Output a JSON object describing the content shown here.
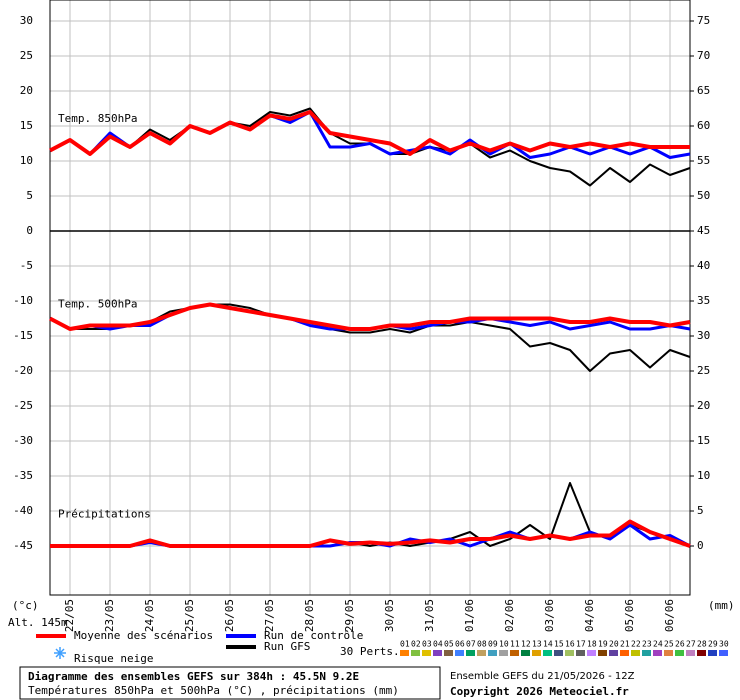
{
  "chart_data": {
    "type": "line",
    "categories": [
      null,
      "22/05",
      null,
      "23/05",
      null,
      "24/05",
      null,
      "25/05",
      null,
      "26/05",
      null,
      "27/05",
      null,
      "28/05",
      null,
      "29/05",
      null,
      "30/05",
      null,
      "31/05",
      null,
      "01/06",
      null,
      "02/06",
      null,
      "03/06",
      null,
      "04/06",
      null,
      "05/06",
      null,
      "06/06",
      null
    ],
    "ylim": [
      -52,
      33
    ],
    "yticks": [
      30,
      25,
      20,
      15,
      10,
      5,
      0,
      -5,
      -10,
      -15,
      -20,
      -25,
      -30,
      -35,
      -40,
      -45
    ],
    "y2lim": [
      -7,
      78
    ],
    "y2ticks": [
      75,
      70,
      65,
      60,
      55,
      50,
      45,
      40,
      35,
      30,
      25,
      20,
      15,
      10,
      5,
      0
    ],
    "grid": true,
    "y_unit": "(°c)",
    "y2_unit": "(mm)",
    "altitude": "Alt. 145m",
    "panel_labels": {
      "temp850": "Temp. 850hPa",
      "temp500": "Temp. 500hPa",
      "precip": "Précipitations"
    },
    "series": [
      {
        "name": "Run GFS",
        "color": "#000000",
        "temp850": [
          11.5,
          13,
          11,
          13.5,
          12,
          14.5,
          13,
          15,
          14,
          15.5,
          15,
          17,
          16.5,
          17.5,
          14,
          12.5,
          12.5,
          11,
          11,
          12,
          11.5,
          12.5,
          10.5,
          11.5,
          10,
          9,
          8.5,
          6.5,
          9,
          7,
          9.5,
          8,
          9
        ],
        "temp500": [
          -12.5,
          -14,
          -14,
          -14,
          -13.5,
          -13,
          -11.5,
          -11,
          -10.5,
          -10.5,
          -11,
          -12,
          -12.5,
          -13,
          -14,
          -14.5,
          -14.5,
          -14,
          -14.5,
          -13.5,
          -13.5,
          -13,
          -13.5,
          -14,
          -16.5,
          -16,
          -17,
          -20,
          -17.5,
          -17,
          -19.5,
          -17,
          -18
        ],
        "precip": [
          0,
          0,
          0,
          0,
          0,
          0.5,
          0,
          0,
          0,
          0,
          0,
          0,
          0,
          0,
          0,
          0.5,
          0,
          0.5,
          0,
          0.5,
          1,
          2,
          0,
          1,
          3,
          1,
          9,
          2,
          1,
          3,
          2,
          1,
          0
        ]
      },
      {
        "name": "Run de contrôle",
        "color": "#0000ff",
        "temp850": [
          11.5,
          13,
          11,
          14,
          12,
          14,
          12.5,
          15,
          14,
          15.5,
          14.5,
          16.5,
          15.5,
          17,
          12,
          12,
          12.5,
          11,
          11.5,
          12,
          11,
          13,
          11,
          12.5,
          10.5,
          11,
          12,
          11,
          12,
          11,
          12,
          10.5,
          11
        ],
        "temp500": [
          -12.5,
          -14,
          -13.5,
          -14,
          -13.5,
          -13.5,
          -12,
          -11,
          -10.5,
          -11,
          -11.5,
          -12,
          -12.5,
          -13.5,
          -14,
          -14,
          -14,
          -13.5,
          -14,
          -13.5,
          -13,
          -13,
          -12.5,
          -13,
          -13.5,
          -13,
          -14,
          -13.5,
          -13,
          -14,
          -14,
          -13.5,
          -14
        ],
        "precip": [
          0,
          0,
          0,
          0,
          0,
          0.5,
          0,
          0,
          0,
          0,
          0,
          0,
          0,
          0,
          0,
          0.5,
          0.5,
          0,
          1,
          0.5,
          1,
          0,
          1,
          2,
          1,
          1.5,
          1,
          2,
          1,
          3,
          1,
          1.5,
          0
        ]
      },
      {
        "name": "Moyenne des scénarios",
        "color": "#ff0000",
        "temp850": [
          11.5,
          13,
          11,
          13.5,
          12,
          14,
          12.5,
          15,
          14,
          15.5,
          14.5,
          16.5,
          16,
          17,
          14,
          13.5,
          13,
          12.5,
          11,
          13,
          11.5,
          12.5,
          11.5,
          12.5,
          11.5,
          12.5,
          12,
          12.5,
          12,
          12.5,
          12,
          12,
          12
        ],
        "temp500": [
          -12.5,
          -14,
          -13.5,
          -13.5,
          -13.5,
          -13,
          -12,
          -11,
          -10.5,
          -11,
          -11.5,
          -12,
          -12.5,
          -13,
          -13.5,
          -14,
          -14,
          -13.5,
          -13.5,
          -13,
          -13,
          -12.5,
          -12.5,
          -12.5,
          -12.5,
          -12.5,
          -13,
          -13,
          -12.5,
          -13,
          -13,
          -13.5,
          -13
        ],
        "precip": [
          0,
          0,
          0,
          0,
          0,
          0.8,
          0,
          0,
          0,
          0,
          0,
          0,
          0,
          0,
          0.8,
          0.3,
          0.5,
          0.3,
          0.5,
          0.8,
          0.5,
          1,
          1,
          1.5,
          1,
          1.5,
          1,
          1.5,
          1.5,
          3.5,
          2,
          1,
          0
        ]
      }
    ],
    "snow_label": "Risque neige",
    "perturbations": {
      "title": "30 Perts.",
      "items": [
        {
          "name": "01",
          "color": "#ff8000"
        },
        {
          "name": "02",
          "color": "#80c040"
        },
        {
          "name": "03",
          "color": "#e0c000"
        },
        {
          "name": "04",
          "color": "#8040c0"
        },
        {
          "name": "05",
          "color": "#806040"
        },
        {
          "name": "06",
          "color": "#4080ff"
        },
        {
          "name": "07",
          "color": "#00a060"
        },
        {
          "name": "08",
          "color": "#c0a060"
        },
        {
          "name": "09",
          "color": "#40a0c0"
        },
        {
          "name": "10",
          "color": "#a0a0a0"
        },
        {
          "name": "11",
          "color": "#c06000"
        },
        {
          "name": "12",
          "color": "#008040"
        },
        {
          "name": "13",
          "color": "#e0a000"
        },
        {
          "name": "14",
          "color": "#00c080"
        },
        {
          "name": "15",
          "color": "#405080"
        },
        {
          "name": "16",
          "color": "#a0c060"
        },
        {
          "name": "17",
          "color": "#606060"
        },
        {
          "name": "18",
          "color": "#c080ff"
        },
        {
          "name": "19",
          "color": "#804000"
        },
        {
          "name": "20",
          "color": "#6040a0"
        },
        {
          "name": "21",
          "color": "#ff6000"
        },
        {
          "name": "22",
          "color": "#c0c000"
        },
        {
          "name": "23",
          "color": "#20a0a0"
        },
        {
          "name": "24",
          "color": "#a040c0"
        },
        {
          "name": "25",
          "color": "#e08040"
        },
        {
          "name": "26",
          "color": "#40c040"
        },
        {
          "name": "27",
          "color": "#c080c0"
        },
        {
          "name": "28",
          "color": "#800000"
        },
        {
          "name": "29",
          "color": "#2040c0"
        },
        {
          "name": "30",
          "color": "#4060ff"
        }
      ]
    },
    "footer": {
      "title": "Diagramme des ensembles GEFS sur 384h : 45.5N 9.2E",
      "subtitle": "Températures 850hPa et 500hPa (°C) , précipitations (mm)",
      "run": "Ensemble GEFS du 21/05/2026 - 12Z",
      "copyright": "Copyright 2026 Meteociel.fr"
    }
  }
}
